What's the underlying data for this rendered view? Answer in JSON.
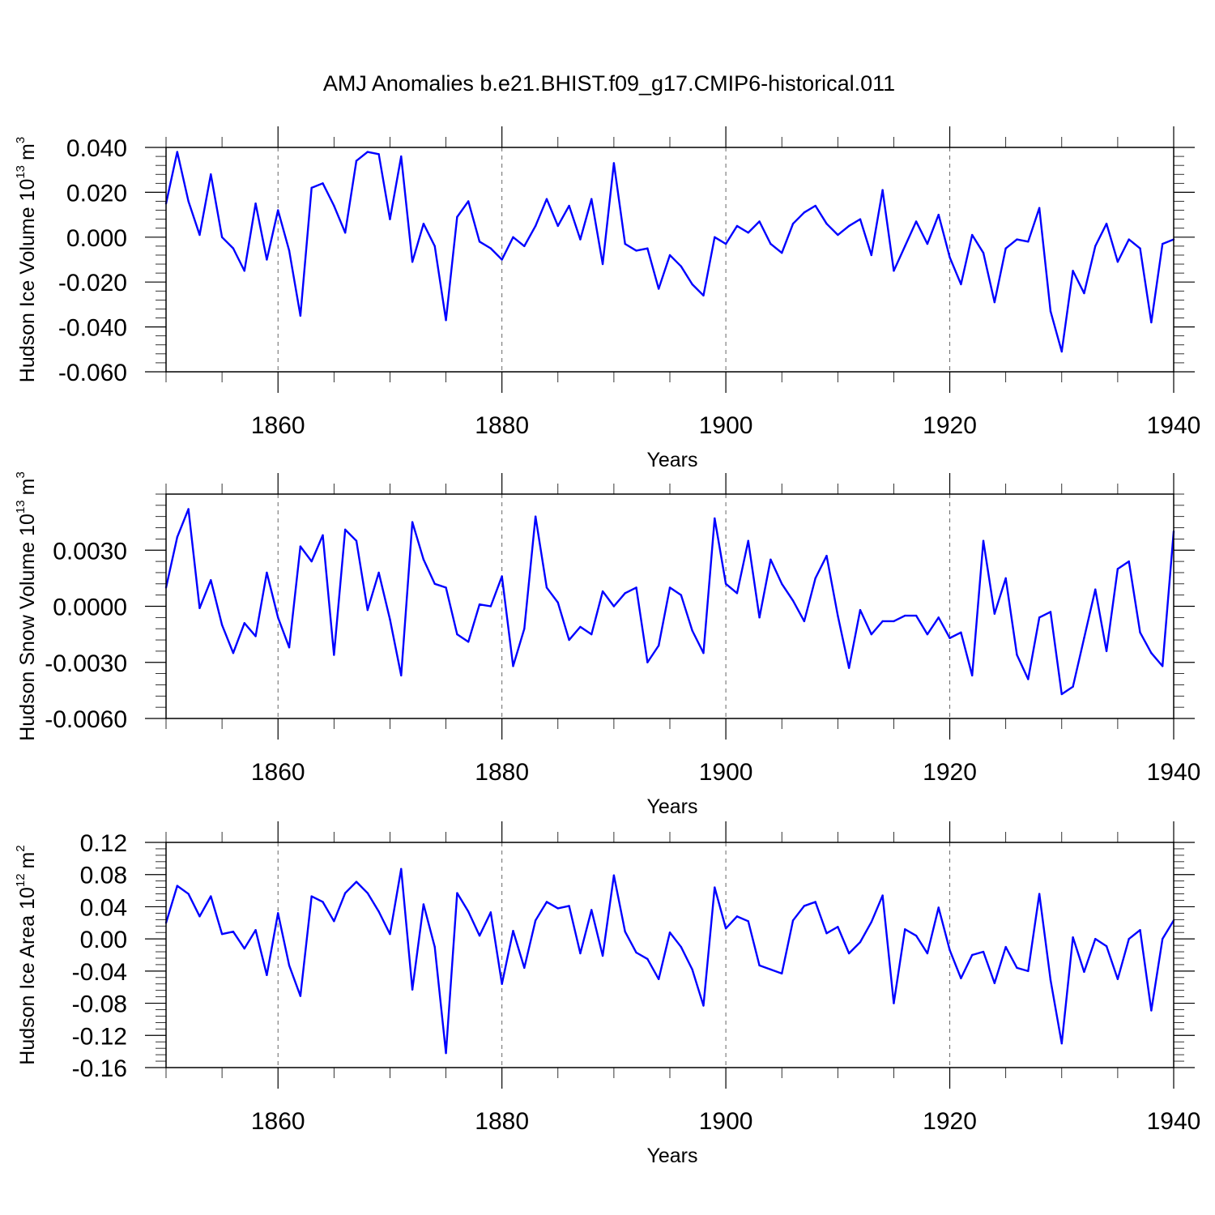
{
  "title": "AMJ Anomalies b.e21.BHIST.f09_g17.CMIP6-historical.011",
  "chart_data": [
    {
      "type": "line",
      "ylabel": "Hudson Ice Volume 10",
      "ylabel_exp": "13",
      "ylabel_unit": "m",
      "ylabel_unit_exp": "3",
      "xlabel": "Years",
      "xlim": [
        1850,
        1940
      ],
      "ylim": [
        -0.06,
        0.04
      ],
      "ytick_values": [
        0.04,
        0.02,
        0.0,
        -0.02,
        -0.04,
        -0.06
      ],
      "ytick_labels": [
        "0.040",
        "0.020",
        "0.000",
        "-0.020",
        "-0.040",
        "-0.060"
      ],
      "xtick_values": [
        1860,
        1880,
        1900,
        1920,
        1940
      ],
      "xtick_labels": [
        "1860",
        "1880",
        "1900",
        "1920",
        "1940"
      ],
      "grid": "vertical dashed at major x ticks",
      "series": [
        {
          "name": "Hudson Ice Volume",
          "color": "#0000ff",
          "x_start": 1850,
          "values": [
            0.015,
            0.038,
            0.016,
            0.001,
            0.028,
            0.0,
            -0.005,
            -0.015,
            0.015,
            -0.01,
            0.012,
            -0.006,
            -0.035,
            0.022,
            0.024,
            0.014,
            0.002,
            0.034,
            0.038,
            0.037,
            0.008,
            0.036,
            -0.011,
            0.006,
            -0.004,
            -0.037,
            0.009,
            0.016,
            -0.002,
            -0.005,
            -0.01,
            0.0,
            -0.004,
            0.005,
            0.017,
            0.005,
            0.014,
            -0.001,
            0.017,
            -0.012,
            0.033,
            -0.003,
            -0.006,
            -0.005,
            -0.023,
            -0.008,
            -0.013,
            -0.021,
            -0.026,
            0.0,
            -0.003,
            0.005,
            0.002,
            0.007,
            -0.003,
            -0.007,
            0.006,
            0.011,
            0.014,
            0.006,
            0.001,
            0.005,
            0.008,
            -0.008,
            0.021,
            -0.015,
            -0.004,
            0.007,
            -0.003,
            0.01,
            -0.009,
            -0.021,
            0.001,
            -0.007,
            -0.029,
            -0.005,
            -0.001,
            -0.002,
            0.013,
            -0.033,
            -0.051,
            -0.015,
            -0.025,
            -0.004,
            0.006,
            -0.011,
            -0.001,
            -0.005,
            -0.038,
            -0.003,
            -0.001
          ]
        }
      ]
    },
    {
      "type": "line",
      "ylabel": "Hudson Snow Volume 10",
      "ylabel_exp": "13",
      "ylabel_unit": "m",
      "ylabel_unit_exp": "3",
      "xlabel": "Years",
      "xlim": [
        1850,
        1940
      ],
      "ylim": [
        -0.006,
        0.006
      ],
      "ytick_values": [
        0.003,
        0.0,
        -0.003,
        -0.006
      ],
      "ytick_labels": [
        "0.0030",
        "0.0000",
        "-0.0030",
        "-0.0060"
      ],
      "xtick_values": [
        1860,
        1880,
        1900,
        1920,
        1940
      ],
      "xtick_labels": [
        "1860",
        "1880",
        "1900",
        "1920",
        "1940"
      ],
      "grid": "vertical dashed at major x ticks",
      "series": [
        {
          "name": "Hudson Snow Volume",
          "color": "#0000ff",
          "x_start": 1850,
          "values": [
            0.001,
            0.0037,
            0.0052,
            -0.0001,
            0.0014,
            -0.001,
            -0.0025,
            -0.0009,
            -0.0016,
            0.0018,
            -0.0006,
            -0.0022,
            0.0032,
            0.0024,
            0.0038,
            -0.0026,
            0.0041,
            0.0035,
            -0.0002,
            0.0018,
            -0.0007,
            -0.0037,
            0.0045,
            0.0025,
            0.0012,
            0.001,
            -0.0015,
            -0.0019,
            0.0001,
            0.0,
            0.0016,
            -0.0032,
            -0.0012,
            0.0048,
            0.001,
            0.0002,
            -0.0018,
            -0.0011,
            -0.0015,
            0.0008,
            0.0,
            0.0007,
            0.001,
            -0.003,
            -0.0021,
            0.001,
            0.0006,
            -0.0013,
            -0.0025,
            0.0047,
            0.0012,
            0.0007,
            0.0035,
            -0.0006,
            0.0025,
            0.0012,
            0.0003,
            -0.0008,
            0.0015,
            0.0027,
            -0.0005,
            -0.0033,
            -0.0002,
            -0.0015,
            -0.0008,
            -0.0008,
            -0.0005,
            -0.0005,
            -0.0015,
            -0.0006,
            -0.0017,
            -0.0014,
            -0.0037,
            0.0035,
            -0.0004,
            0.0015,
            -0.0026,
            -0.0039,
            -0.0006,
            -0.0003,
            -0.0047,
            -0.0043,
            -0.0017,
            0.0009,
            -0.0024,
            0.002,
            0.0024,
            -0.0014,
            -0.0025,
            -0.0032,
            0.004
          ]
        }
      ]
    },
    {
      "type": "line",
      "ylabel": "Hudson Ice Area 10",
      "ylabel_exp": "12",
      "ylabel_unit": "m",
      "ylabel_unit_exp": "2",
      "xlabel": "Years",
      "xlim": [
        1850,
        1940
      ],
      "ylim": [
        -0.16,
        0.12
      ],
      "ytick_values": [
        0.12,
        0.08,
        0.04,
        0.0,
        -0.04,
        -0.08,
        -0.12,
        -0.16
      ],
      "ytick_labels": [
        "0.12",
        "0.08",
        "0.04",
        "0.00",
        "-0.04",
        "-0.08",
        "-0.12",
        "-0.16"
      ],
      "xtick_values": [
        1860,
        1880,
        1900,
        1920,
        1940
      ],
      "xtick_labels": [
        "1860",
        "1880",
        "1900",
        "1920",
        "1940"
      ],
      "grid": "vertical dashed at major x ticks",
      "series": [
        {
          "name": "Hudson Ice Area",
          "color": "#0000ff",
          "x_start": 1850,
          "values": [
            0.02,
            0.066,
            0.056,
            0.028,
            0.053,
            0.006,
            0.009,
            -0.012,
            0.011,
            -0.045,
            0.032,
            -0.033,
            -0.071,
            0.053,
            0.046,
            0.022,
            0.057,
            0.071,
            0.057,
            0.034,
            0.006,
            0.087,
            -0.063,
            0.043,
            -0.01,
            -0.142,
            0.057,
            0.034,
            0.004,
            0.033,
            -0.056,
            0.01,
            -0.036,
            0.023,
            0.046,
            0.038,
            0.041,
            -0.018,
            0.036,
            -0.021,
            0.079,
            0.009,
            -0.017,
            -0.025,
            -0.05,
            0.008,
            -0.01,
            -0.038,
            -0.083,
            0.064,
            0.013,
            0.028,
            0.022,
            -0.033,
            -0.038,
            -0.043,
            0.023,
            0.041,
            0.046,
            0.007,
            0.015,
            -0.018,
            -0.004,
            0.021,
            0.054,
            -0.08,
            0.012,
            0.004,
            -0.018,
            0.039,
            -0.014,
            -0.049,
            -0.02,
            -0.016,
            -0.055,
            -0.01,
            -0.036,
            -0.04,
            0.056,
            -0.051,
            -0.13,
            0.002,
            -0.041,
            0.0,
            -0.009,
            -0.05,
            0.0,
            0.011,
            -0.089,
            0.0,
            0.023
          ]
        }
      ]
    }
  ]
}
